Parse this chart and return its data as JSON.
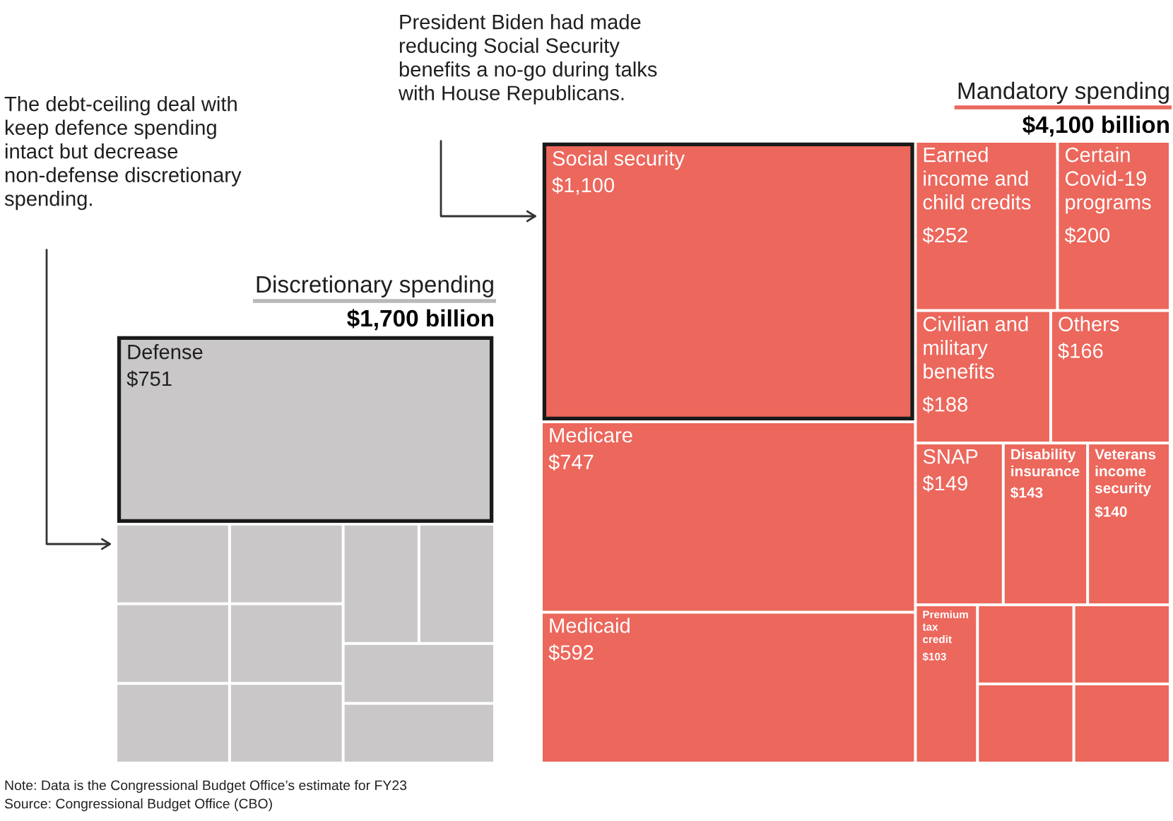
{
  "chart_data": [
    {
      "type": "other",
      "categories": [
        "Discretionary spending",
        "Defense",
        null,
        null,
        null,
        null,
        null,
        null,
        null,
        null,
        null,
        null
      ],
      "values": [
        1700,
        751,
        null,
        null,
        null,
        null,
        null,
        null,
        null,
        null,
        null,
        null
      ],
      "value_labels": [
        "$1,700 billion",
        "$751",
        null,
        null,
        null,
        null,
        null,
        null,
        null,
        null,
        null,
        null
      ],
      "colors": [
        "#b9b9b9",
        "#c9c7c8",
        "#c9c7c8",
        "#c9c7c8",
        "#c9c7c8",
        "#c9c7c8",
        "#c9c7c8",
        "#c9c7c8",
        "#c9c7c8",
        "#c9c7c8",
        "#c9c7c8",
        "#c9c7c8"
      ],
      "annotations": [
        "The debt-ceiling deal with keep defence spending intact but decrease non-defense discretionary spending.",
        "Note: Data is the Congressional Budget Office’s estimate for FY23",
        "Source: Congressional Budget Office (CBO)"
      ]
    },
    {
      "type": "other",
      "categories": [
        "Mandatory spending",
        "Social security",
        "Medicare",
        "Medicaid",
        "Earned income and child credits",
        "Certain Covid-19 programs",
        "Civilian and military benefits",
        "Others",
        "SNAP",
        "Disability insurance",
        "Veterans income security",
        "Premium tax credit",
        null,
        null,
        null,
        null
      ],
      "values": [
        4100,
        1100,
        747,
        592,
        252,
        200,
        188,
        166,
        149,
        143,
        140,
        103,
        null,
        null,
        null,
        null
      ],
      "value_labels": [
        "$4,100 billion",
        "$1,100",
        "$747",
        "$592",
        "$252",
        "$200",
        "$188",
        "$166",
        "$149",
        "$143",
        "$140",
        "$103",
        null,
        null,
        null,
        null
      ],
      "colors": [
        "#e9685c",
        "#ec675c",
        "#ec675c",
        "#ec675c",
        "#ec675c",
        "#ec675c",
        "#ec675c",
        "#ec675c",
        "#ec675c",
        "#ec675c",
        "#ec675c",
        "#ec675c",
        "#ec675c",
        "#ec675c",
        "#ec675c",
        "#ec675c"
      ],
      "annotations": [
        "President Biden had made reducing Social Security benefits a no-go during talks with House Republicans."
      ]
    }
  ]
}
